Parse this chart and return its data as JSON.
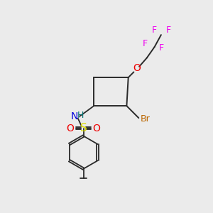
{
  "background_color": "#ebebeb",
  "bond_color": "#2a2a2a",
  "atom_colors": {
    "F": "#ee00ee",
    "O": "#ee0000",
    "N": "#0000dd",
    "H": "#007070",
    "S": "#dddd00",
    "Br": "#bb6600",
    "C": "#2a2a2a"
  },
  "figsize": [
    3.0,
    3.0
  ],
  "dpi": 100
}
